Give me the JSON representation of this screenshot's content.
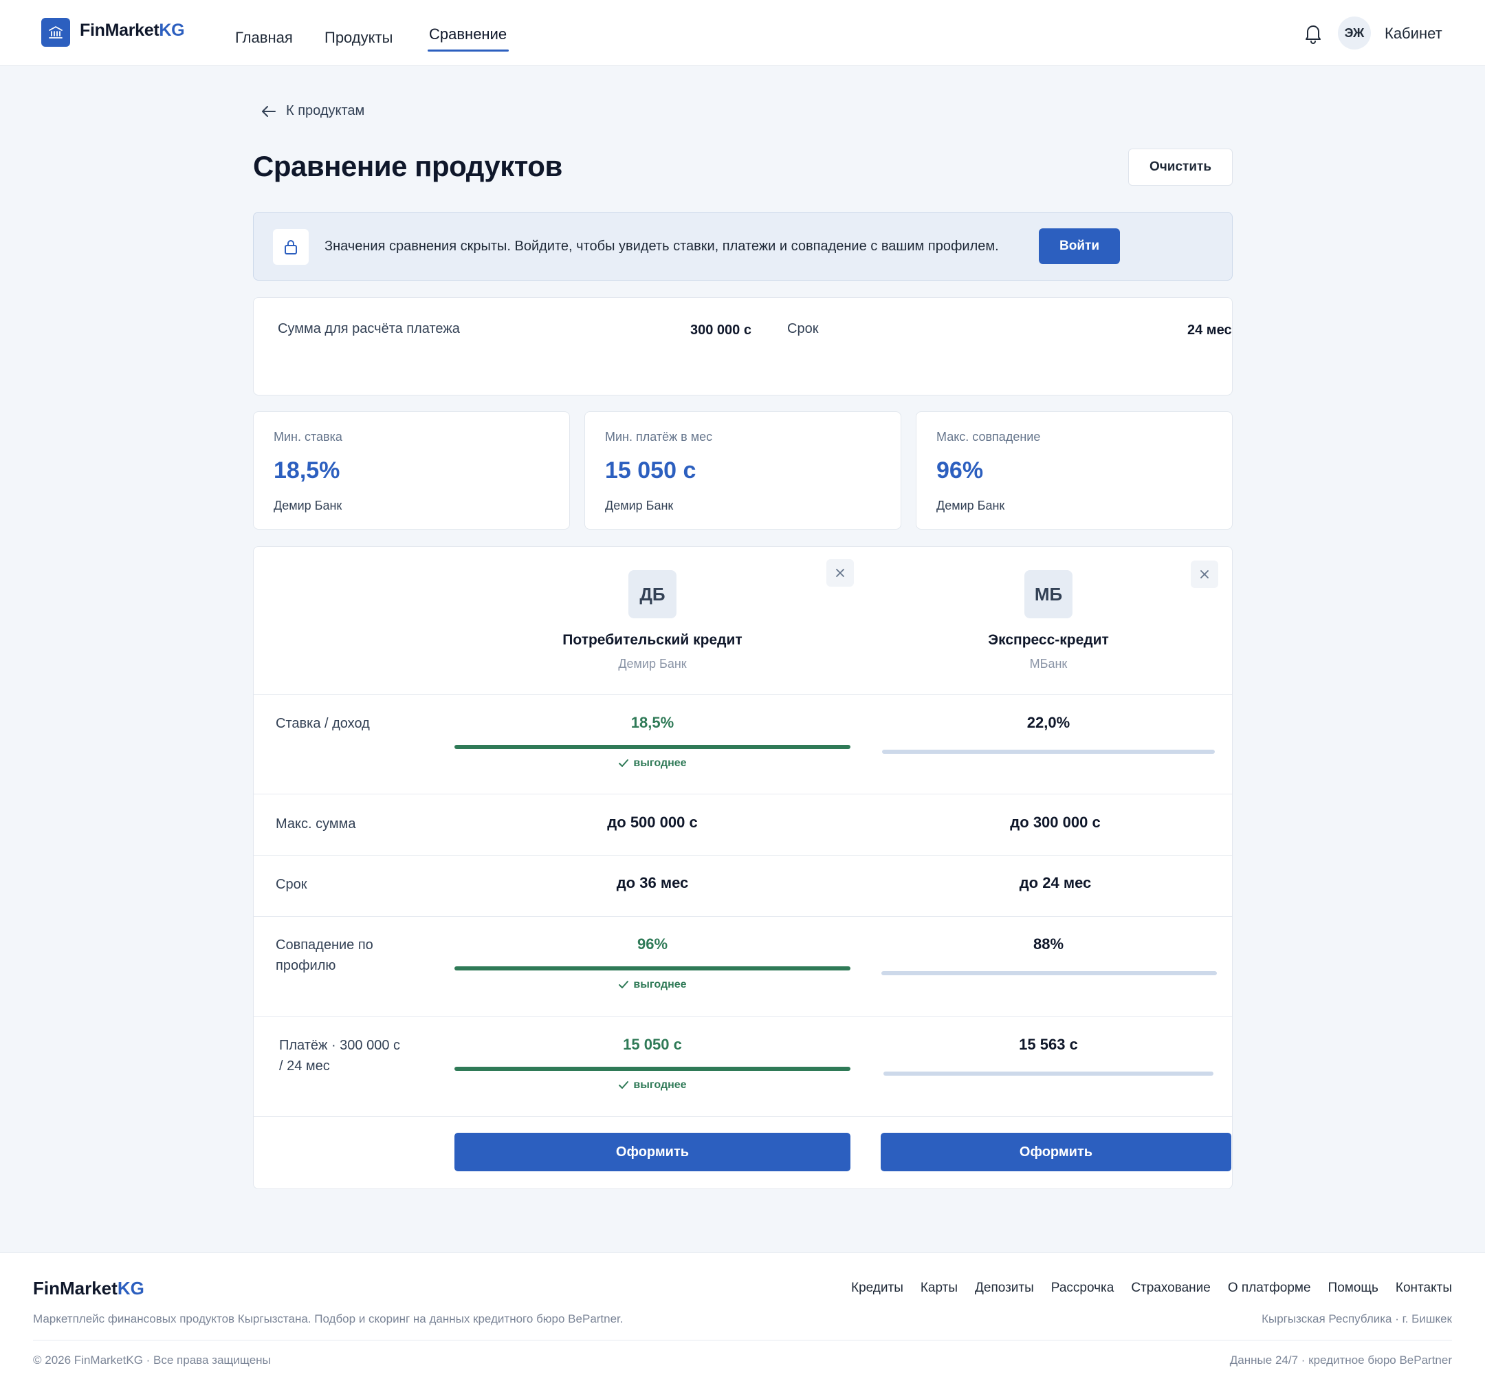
{
  "header": {
    "logo_main": "FinMarket",
    "logo_accent": "KG",
    "nav": [
      {
        "label": "Главная"
      },
      {
        "label": "Продукты"
      },
      {
        "label": "Сравнение"
      }
    ],
    "avatar_initials": "ЭЖ",
    "cabinet_label": "Кабинет"
  },
  "back_link": "К продуктам",
  "page_title": "Сравнение продуктов",
  "clear_label": "Очистить",
  "banner": {
    "text": "Значения сравнения скрыты. Войдите, чтобы увидеть ставки, платежи и совпадение с вашим профилем.",
    "login_label": "Войти"
  },
  "calc": {
    "amount_label": "Сумма для расчёта платежа",
    "amount_value": "300 000 с",
    "term_label": "Срок",
    "term_value": "24 мес"
  },
  "stats": [
    {
      "label": "Мин. ставка",
      "value": "18,5%",
      "bank": "Демир Банк"
    },
    {
      "label": "Мин. платёж в мес",
      "value": "15 050 с",
      "bank": "Демир Банк"
    },
    {
      "label": "Макс. совпадение",
      "value": "96%",
      "bank": "Демир Банк"
    }
  ],
  "products": [
    {
      "logo": "ДБ",
      "name": "Потребительский кредит",
      "bank": "Демир Банк"
    },
    {
      "logo": "МБ",
      "name": "Экспресс-кредит",
      "bank": "МБанк"
    }
  ],
  "rows": {
    "rate": {
      "label": "Ставка / доход",
      "v1": "18,5%",
      "v2": "22,0%"
    },
    "max_sum": {
      "label": "Макс. сумма",
      "v1": "до 500 000 с",
      "v2": "до 300 000 с"
    },
    "term": {
      "label": "Срок",
      "v1": "до 36 мес",
      "v2": "до 24 мес"
    },
    "match": {
      "label": "Совпадение по профилю",
      "v1": "96%",
      "v2": "88%"
    },
    "payment": {
      "label": "Платёж · 300 000 с / 24 мес",
      "v1": "15 050 с",
      "v2": "15 563 с"
    }
  },
  "better_label": "выгоднее",
  "apply_label": "Оформить",
  "footer": {
    "logo_main": "FinMarket",
    "logo_accent": "KG",
    "links": [
      "Кредиты",
      "Карты",
      "Депозиты",
      "Рассрочка",
      "Страхование",
      "О платформе",
      "Помощь",
      "Контакты"
    ],
    "description": "Маркетплейс финансовых продуктов Кыргызстана. Подбор и скоринг на данных кредитного бюро BePartner.",
    "location": "Кыргызская Республика · г. Бишкек",
    "copyright": "© 2026 FinMarketKG · Все права защищены",
    "data_note": "Данные 24/7 · кредитное бюро BePartner"
  },
  "colors": {
    "accent": "#2c5fbf",
    "success": "#2f7a57",
    "bar_light": "#cdd9ea",
    "background": "#f3f6fa"
  }
}
